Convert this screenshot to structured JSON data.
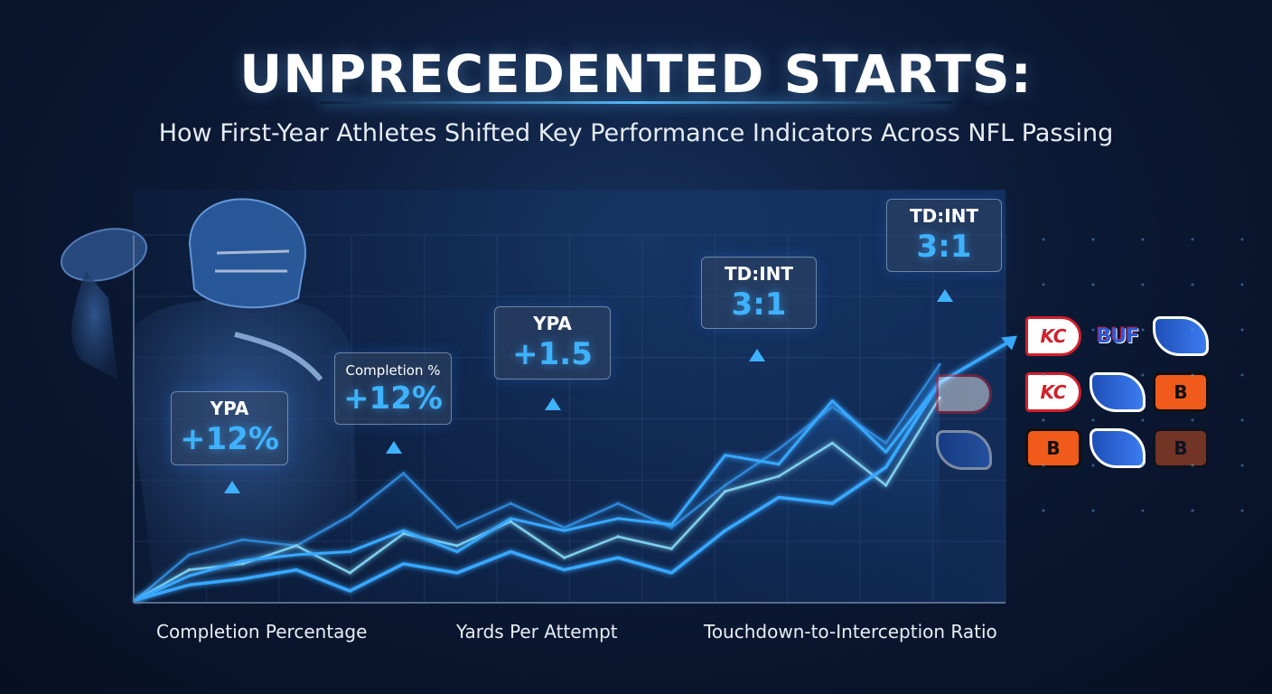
{
  "header": {
    "title": "UNPRECEDENTED STARTS:",
    "subtitle": "How First-Year Athletes Shifted Key Performance Indicators Across NFL Passing"
  },
  "colors": {
    "accent": "#3fb2ff",
    "line_bright": "#38a8ff",
    "line_mid": "#2f86d6",
    "line_soft": "#7fd0f0",
    "background": "#0a1730"
  },
  "callouts": [
    {
      "label": "YPA",
      "value": "+12%"
    },
    {
      "label": "Completion %",
      "value": "+12%"
    },
    {
      "label": "YPA",
      "value": "+1.5"
    },
    {
      "label": "TD:INT",
      "value": "3:1"
    },
    {
      "label": "TD:INT",
      "value": "3:1"
    }
  ],
  "team_logos": [
    {
      "icon": "chiefs-logo-icon",
      "text": "KC"
    },
    {
      "icon": "bills-wordmark-icon",
      "text": "BUF"
    },
    {
      "icon": "bills-logo-icon",
      "text": ""
    },
    {
      "icon": "chiefs-logo-icon",
      "text": "KC"
    },
    {
      "icon": "bills-logo-icon",
      "text": ""
    },
    {
      "icon": "bengals-logo-icon",
      "text": "B"
    },
    {
      "icon": "bengals-logo-icon",
      "text": "B"
    },
    {
      "icon": "bills-logo-icon",
      "text": ""
    },
    {
      "icon": "bengals-logo-icon",
      "text": "B"
    }
  ],
  "chart_data": {
    "type": "line",
    "title": "",
    "xlabel": "",
    "ylabel": "",
    "categories": [
      "Completion Percentage",
      "Yards Per Attempt",
      "Touchdown-to-Interception Ratio"
    ],
    "x": [
      0,
      1,
      2,
      3,
      4,
      5,
      6,
      7,
      8,
      9,
      10,
      11,
      12,
      13,
      14,
      15
    ],
    "ylim": [
      0,
      100
    ],
    "grid": true,
    "series": [
      {
        "values": [
          0,
          15,
          20,
          18,
          28,
          42,
          24,
          32,
          24,
          32,
          24,
          38,
          50,
          64,
          52,
          78
        ]
      },
      {
        "values": [
          0,
          10,
          12,
          18,
          9,
          22,
          18,
          26,
          14,
          21,
          17,
          36,
          41,
          52,
          38,
          67
        ]
      },
      {
        "values": [
          0,
          8,
          13,
          15,
          16,
          23,
          16,
          27,
          23,
          27,
          25,
          48,
          45,
          66,
          49,
          72
        ]
      },
      {
        "values": [
          0,
          5,
          7,
          10,
          3,
          12,
          9,
          16,
          10,
          14,
          9,
          23,
          34,
          32,
          44,
          72
        ]
      }
    ]
  }
}
